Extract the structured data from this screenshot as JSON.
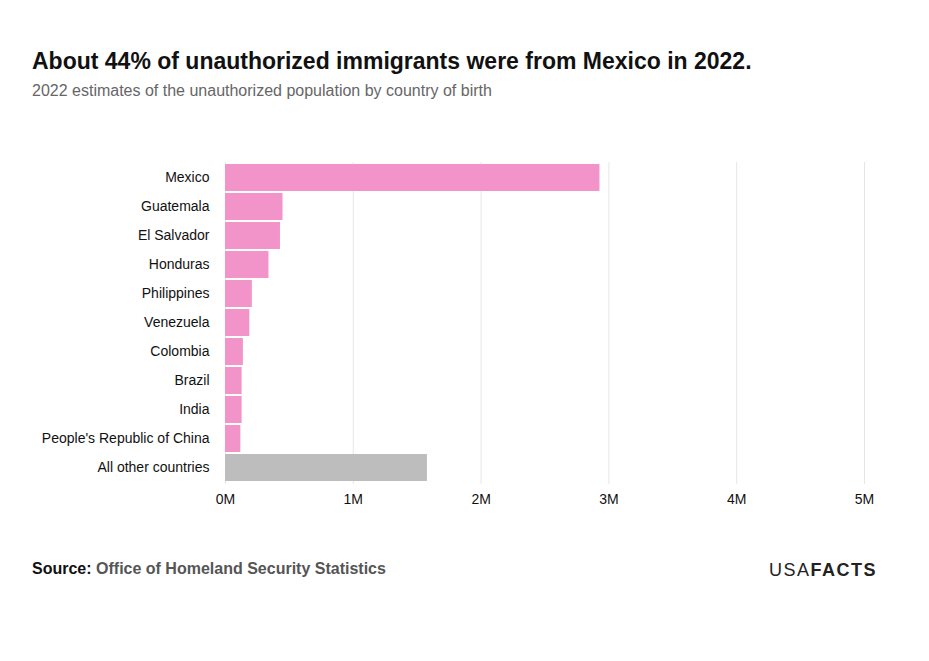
{
  "chart_data": {
    "type": "bar",
    "orientation": "horizontal",
    "title": "About 44% of unauthorized immigrants were from Mexico in 2022.",
    "subtitle": "2022 estimates of the unauthorized population by country of birth",
    "source_label": "Source:",
    "source": "Office of Homeland Security Statistics",
    "logo": [
      "USA",
      "FACTS"
    ],
    "categories": [
      "Mexico",
      "Guatemala",
      "El Salvador",
      "Honduras",
      "Philippines",
      "Venezuela",
      "Colombia",
      "Brazil",
      "India",
      "People's Republic of China",
      "All other countries"
    ],
    "values": [
      2.93,
      0.45,
      0.43,
      0.34,
      0.21,
      0.19,
      0.14,
      0.13,
      0.13,
      0.12,
      1.58
    ],
    "colors": [
      "#f293c9",
      "#f293c9",
      "#f293c9",
      "#f293c9",
      "#f293c9",
      "#f293c9",
      "#f293c9",
      "#f293c9",
      "#f293c9",
      "#f293c9",
      "#bdbdbd"
    ],
    "xlim": [
      0,
      5
    ],
    "xticks": [
      {
        "value": 0,
        "label": "0M"
      },
      {
        "value": 1,
        "label": "1M"
      },
      {
        "value": 2,
        "label": "2M"
      },
      {
        "value": 3,
        "label": "3M"
      },
      {
        "value": 4,
        "label": "4M"
      },
      {
        "value": 5,
        "label": "5M"
      }
    ],
    "grid": true,
    "data_labels": false
  }
}
